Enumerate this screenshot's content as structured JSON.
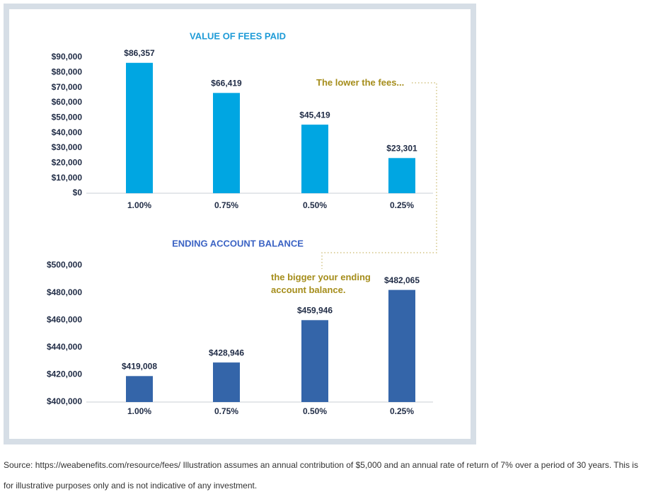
{
  "chart_data": [
    {
      "type": "bar",
      "title": "VALUE OF FEES PAID",
      "title_color": "#1e9bd7",
      "categories": [
        "1.00%",
        "0.75%",
        "0.50%",
        "0.25%"
      ],
      "values": [
        86357,
        66419,
        45419,
        23301
      ],
      "value_labels": [
        "$86,357",
        "$66,419",
        "$45,419",
        "$23,301"
      ],
      "color": "#00a6e2",
      "ylim": [
        0,
        90000
      ],
      "yticks": [
        {
          "value": 0,
          "label": "$0"
        },
        {
          "value": 10000,
          "label": "$10,000"
        },
        {
          "value": 20000,
          "label": "$20,000"
        },
        {
          "value": 30000,
          "label": "$30,000"
        },
        {
          "value": 40000,
          "label": "$40,000"
        },
        {
          "value": 50000,
          "label": "$50,000"
        },
        {
          "value": 60000,
          "label": "$60,000"
        },
        {
          "value": 70000,
          "label": "$70,000"
        },
        {
          "value": 80000,
          "label": "$80,000"
        },
        {
          "value": 90000,
          "label": "$90,000"
        }
      ],
      "annotation": "The lower the fees..."
    },
    {
      "type": "bar",
      "title": "ENDING ACCOUNT BALANCE",
      "title_color": "#3b63c4",
      "categories": [
        "1.00%",
        "0.75%",
        "0.50%",
        "0.25%"
      ],
      "values": [
        419008,
        428946,
        459946,
        482065
      ],
      "value_labels": [
        "$419,008",
        "$428,946",
        "$459,946",
        "$482,065"
      ],
      "color": "#3465a9",
      "ylim": [
        400000,
        500000
      ],
      "yticks": [
        {
          "value": 400000,
          "label": "$400,000"
        },
        {
          "value": 420000,
          "label": "$420,000"
        },
        {
          "value": 440000,
          "label": "$440,000"
        },
        {
          "value": 460000,
          "label": "$460,000"
        },
        {
          "value": 480000,
          "label": "$480,000"
        },
        {
          "value": 500000,
          "label": "$500,000"
        }
      ],
      "annotation": "the bigger your ending account balance."
    }
  ],
  "source": "Source: https://weabenefits.com/resource/fees/ Illustration assumes an annual contribution of $5,000 and an annual rate of return of 7% over a period of 30 years. This is for illustrative purposes only and is not indicative of any investment."
}
